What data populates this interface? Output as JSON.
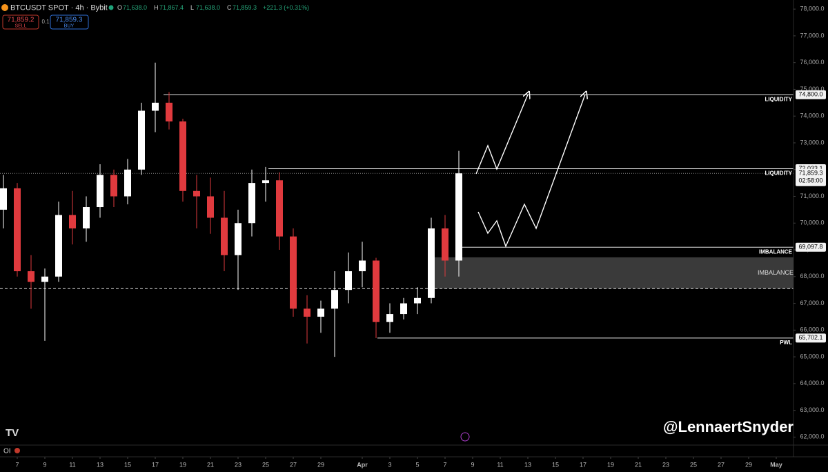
{
  "header": {
    "symbol": "BTCUSDT SPOT · 4h · Bybit",
    "ohlc": [
      {
        "key": "O",
        "value": "71,638.0"
      },
      {
        "key": "H",
        "value": "71,867.4"
      },
      {
        "key": "L",
        "value": "71,638.0"
      },
      {
        "key": "C",
        "value": "71,859.3"
      }
    ],
    "change": "+221.3 (+0.31%)",
    "sell": {
      "price": "71,859.2",
      "label": "SELL"
    },
    "quantity": "0.1",
    "buy": {
      "price": "71,859.3",
      "label": "BUY"
    }
  },
  "chart_data": {
    "type": "candlestick",
    "x": [
      6,
      7,
      8,
      9,
      10,
      11,
      12,
      13,
      14,
      15,
      16,
      17,
      18,
      19,
      20,
      21,
      22,
      23,
      24,
      25,
      26,
      27,
      28,
      29,
      30,
      31,
      32,
      33,
      34,
      35,
      36,
      37,
      38,
      39
    ],
    "open": [
      70500,
      71300,
      68200,
      67800,
      68000,
      70300,
      69800,
      70600,
      71800,
      71000,
      72000,
      74200,
      74500,
      73800,
      71200,
      71000,
      70200,
      68800,
      70000,
      71500,
      71600,
      69500,
      66800,
      66500,
      66800,
      67500,
      68200,
      68600,
      66300,
      66600,
      67000,
      67200,
      69800,
      68600
    ],
    "high": [
      71800,
      71500,
      68800,
      68300,
      70800,
      71200,
      71000,
      72200,
      72000,
      72400,
      74500,
      76000,
      74900,
      73900,
      71800,
      71700,
      71200,
      70500,
      72000,
      72100,
      71900,
      69800,
      67300,
      67100,
      68200,
      68900,
      69300,
      68700,
      67000,
      67200,
      67600,
      70200,
      70300,
      72700
    ],
    "low": [
      69800,
      68000,
      66800,
      65600,
      67800,
      69200,
      69300,
      70200,
      70600,
      70700,
      71800,
      73400,
      73500,
      70800,
      69800,
      69600,
      68200,
      67500,
      69500,
      70800,
      69000,
      66500,
      65500,
      65900,
      65000,
      67000,
      67600,
      65700,
      65900,
      66400,
      66600,
      67000,
      68000,
      68000
    ],
    "close": [
      71300,
      68200,
      67800,
      68000,
      70300,
      69800,
      70600,
      71800,
      71000,
      72000,
      74200,
      74500,
      73800,
      71200,
      71000,
      70200,
      68800,
      70000,
      71500,
      71600,
      69500,
      66800,
      66500,
      66800,
      67500,
      68200,
      68600,
      66300,
      66600,
      67000,
      67200,
      69800,
      68600,
      71859.3
    ],
    "up_color": "#ffffff",
    "down_color": "#e03a3e",
    "xlim": [
      5.75,
      63.25
    ],
    "xticks": [
      7,
      9,
      11,
      13,
      15,
      17,
      19,
      21,
      23,
      25,
      27,
      29,
      {
        "value": 32,
        "label": "Apr"
      },
      {
        "value": 34,
        "label": "3"
      },
      {
        "value": 36,
        "label": "5"
      },
      {
        "value": 38,
        "label": "7"
      },
      {
        "value": 40,
        "label": "9"
      },
      {
        "value": 42,
        "label": "11"
      },
      {
        "value": 44,
        "label": "13"
      },
      {
        "value": 46,
        "label": "15"
      },
      {
        "value": 48,
        "label": "17"
      },
      {
        "value": 50,
        "label": "19"
      },
      {
        "value": 52,
        "label": "21"
      },
      {
        "value": 54,
        "label": "23"
      },
      {
        "value": 56,
        "label": "25"
      },
      {
        "value": 58,
        "label": "27"
      },
      {
        "value": 60,
        "label": "29"
      },
      {
        "value": 62,
        "label": "May"
      }
    ],
    "ylim": [
      61700,
      78340
    ],
    "yticks": [
      {
        "value": 62000,
        "label": "62,000.0"
      },
      {
        "value": 63000,
        "label": "63,000.0"
      },
      {
        "value": 64000,
        "label": "64,000.0"
      },
      {
        "value": 65000,
        "label": "65,000.0"
      },
      {
        "value": 66000,
        "label": "66,000.0"
      },
      {
        "value": 67000,
        "label": "67,000.0"
      },
      {
        "value": 68000,
        "label": "68,000.0"
      },
      {
        "value": 69000,
        "label": "69,000.0"
      },
      {
        "value": 70000,
        "label": "70,000.0"
      },
      {
        "value": 71000,
        "label": "71,000.0"
      },
      {
        "value": 72000,
        "label": "72,000.0"
      },
      {
        "value": 73000,
        "label": "73,000.0"
      },
      {
        "value": 74000,
        "label": "74,000.0"
      },
      {
        "value": 75000,
        "label": "75,000.0"
      },
      {
        "value": 76000,
        "label": "76,000.0"
      },
      {
        "value": 77000,
        "label": "77,000.0"
      },
      {
        "value": 78000,
        "label": "78,000.0"
      }
    ],
    "levels": [
      {
        "value": 74800,
        "label": "74,800.0",
        "note": "LIQUIDITY",
        "from": 17.6
      },
      {
        "value": 72033.1,
        "label": "72,033.1",
        "note": "LIQUIDITY",
        "from": 25.2
      },
      {
        "value": 69097.8,
        "label": "69,097.8",
        "note": "IMBALANCE",
        "from": 38.75
      },
      {
        "value": 65702.1,
        "label": "65,702.1",
        "note": "PWL",
        "from": 33.1
      }
    ],
    "zone": {
      "low": 67550,
      "high": 68720,
      "from": 36.85,
      "note": "IMBALANCE"
    },
    "last_price": {
      "value": 71859.3,
      "label": "71,859.3",
      "countdown": "02:58:00"
    }
  },
  "watermark": "@LennaertSnyder",
  "indicator": "OI"
}
